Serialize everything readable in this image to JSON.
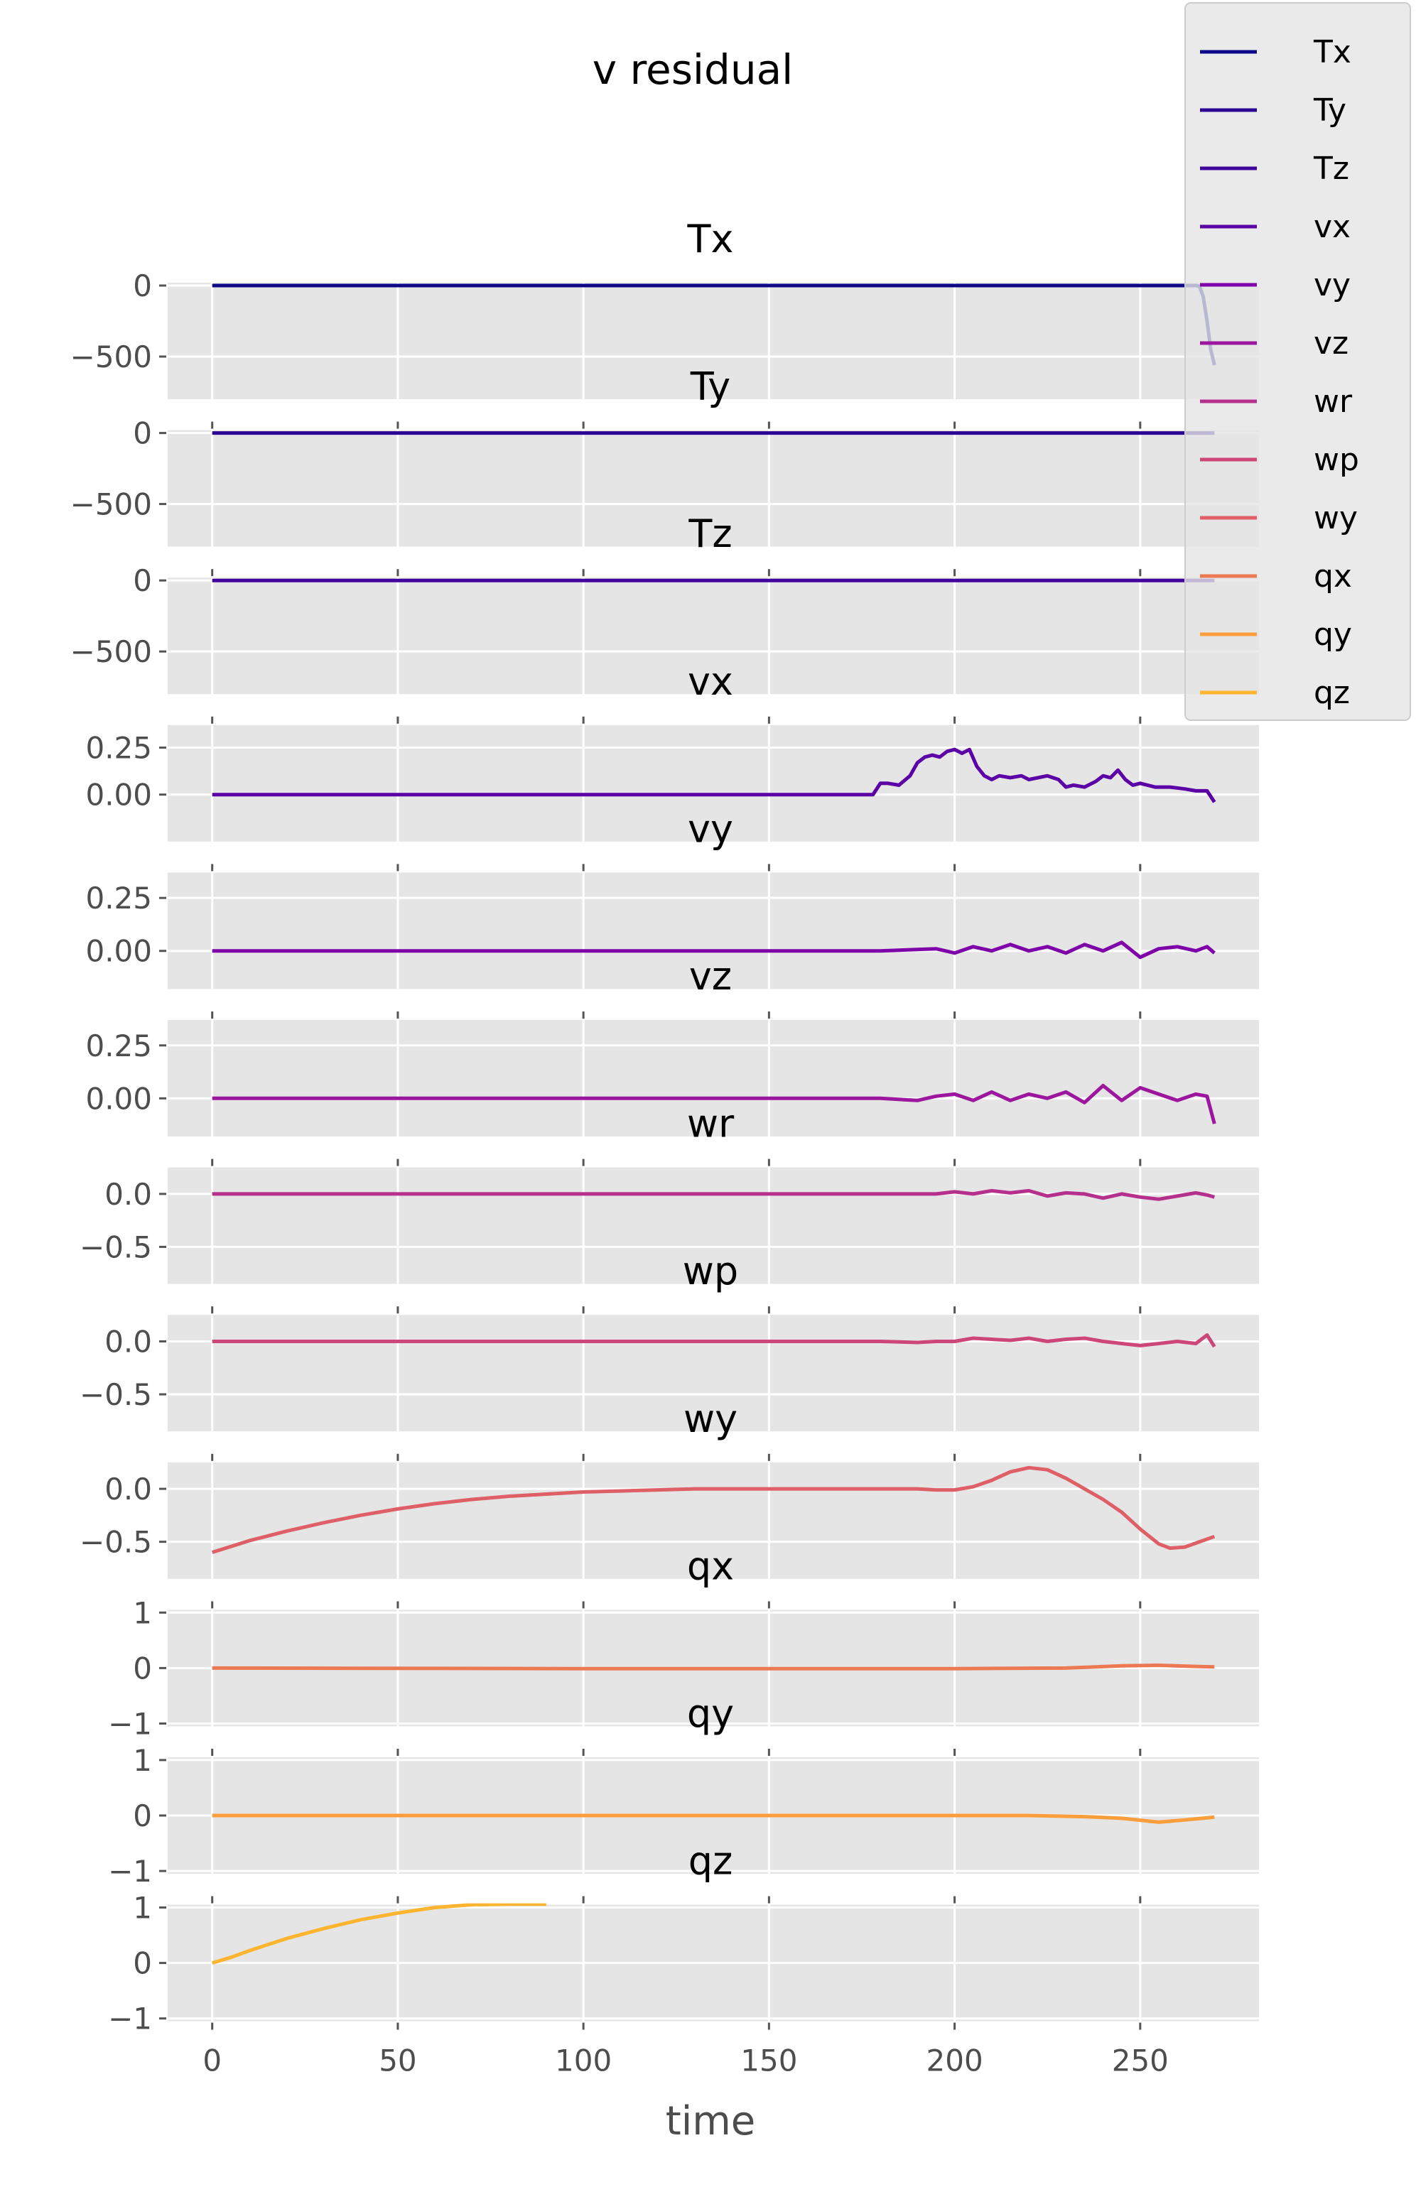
{
  "chart_data": {
    "type": "line",
    "title": "v residual",
    "xlabel": "time",
    "xlim": [
      -12,
      282
    ],
    "xticks": [
      0,
      50,
      100,
      150,
      200,
      250
    ],
    "grid": true,
    "sharex": true,
    "legend": {
      "placement": "top-right",
      "entries": [
        "Tx",
        "Ty",
        "Tz",
        "vx",
        "vy",
        "vz",
        "wr",
        "wp",
        "wy",
        "qx",
        "qy",
        "qz"
      ]
    },
    "panels": [
      {
        "title": "Tx",
        "color": "#0d0887",
        "ylim": [
          -800,
          20
        ],
        "yticks": [
          0,
          -500
        ],
        "x": [
          0,
          265,
          266,
          267,
          268,
          269,
          270
        ],
        "y": [
          0,
          0,
          -5,
          -80,
          -250,
          -450,
          -560
        ]
      },
      {
        "title": "Ty",
        "color": "#2a0593",
        "ylim": [
          -800,
          20
        ],
        "yticks": [
          0,
          -500
        ],
        "x": [
          0,
          270
        ],
        "y": [
          0,
          0
        ]
      },
      {
        "title": "Tz",
        "color": "#41049d",
        "ylim": [
          -800,
          20
        ],
        "yticks": [
          0,
          -500
        ],
        "x": [
          0,
          270
        ],
        "y": [
          0,
          0
        ]
      },
      {
        "title": "vx",
        "color": "#5c01a6",
        "ylim": [
          -0.25,
          0.37
        ],
        "yticks": [
          0.25,
          0.0
        ],
        "x": [
          0,
          150,
          170,
          178,
          180,
          182,
          185,
          188,
          190,
          192,
          194,
          196,
          198,
          200,
          202,
          204,
          206,
          208,
          210,
          212,
          215,
          218,
          220,
          225,
          228,
          230,
          232,
          235,
          238,
          240,
          242,
          244,
          246,
          248,
          250,
          254,
          258,
          262,
          265,
          268,
          270
        ],
        "y": [
          0,
          0,
          0,
          0,
          0.06,
          0.06,
          0.05,
          0.1,
          0.17,
          0.2,
          0.21,
          0.2,
          0.23,
          0.24,
          0.22,
          0.24,
          0.15,
          0.1,
          0.08,
          0.1,
          0.09,
          0.1,
          0.08,
          0.1,
          0.08,
          0.04,
          0.05,
          0.04,
          0.07,
          0.1,
          0.09,
          0.13,
          0.08,
          0.05,
          0.06,
          0.04,
          0.04,
          0.03,
          0.02,
          0.02,
          -0.04
        ]
      },
      {
        "title": "vy",
        "color": "#7e03a8",
        "ylim": [
          -0.18,
          0.37
        ],
        "yticks": [
          0.25,
          0.0
        ],
        "x": [
          0,
          180,
          195,
          200,
          205,
          210,
          215,
          220,
          225,
          230,
          235,
          240,
          245,
          250,
          255,
          260,
          265,
          268,
          270
        ],
        "y": [
          0,
          0,
          0.01,
          -0.01,
          0.02,
          0.0,
          0.03,
          0.0,
          0.02,
          -0.01,
          0.03,
          0.0,
          0.04,
          -0.03,
          0.01,
          0.02,
          0.0,
          0.02,
          -0.01
        ]
      },
      {
        "title": "vz",
        "color": "#9c179e",
        "ylim": [
          -0.18,
          0.37
        ],
        "yticks": [
          0.25,
          0.0
        ],
        "x": [
          0,
          180,
          190,
          195,
          200,
          205,
          210,
          215,
          220,
          225,
          230,
          235,
          240,
          245,
          250,
          255,
          260,
          265,
          268,
          270
        ],
        "y": [
          0,
          0,
          -0.01,
          0.01,
          0.02,
          -0.01,
          0.03,
          -0.01,
          0.02,
          0.0,
          0.03,
          -0.02,
          0.06,
          -0.01,
          0.05,
          0.02,
          -0.01,
          0.02,
          0.01,
          -0.12
        ]
      },
      {
        "title": "wr",
        "color": "#b52f8c",
        "ylim": [
          -0.85,
          0.25
        ],
        "yticks": [
          0.0,
          -0.5
        ],
        "x": [
          0,
          150,
          190,
          195,
          200,
          205,
          210,
          215,
          220,
          225,
          230,
          235,
          240,
          245,
          250,
          255,
          260,
          265,
          268,
          270
        ],
        "y": [
          0,
          0,
          0,
          0.0,
          0.02,
          0.0,
          0.03,
          0.01,
          0.03,
          -0.02,
          0.01,
          0.0,
          -0.04,
          0.0,
          -0.03,
          -0.05,
          -0.02,
          0.01,
          -0.01,
          -0.03
        ]
      },
      {
        "title": "wp",
        "color": "#cc4778",
        "ylim": [
          -0.85,
          0.25
        ],
        "yticks": [
          0.0,
          -0.5
        ],
        "x": [
          0,
          150,
          180,
          190,
          195,
          200,
          205,
          210,
          215,
          220,
          225,
          230,
          235,
          240,
          245,
          250,
          255,
          260,
          265,
          268,
          270
        ],
        "y": [
          0,
          0,
          0,
          -0.01,
          0.0,
          0.0,
          0.03,
          0.02,
          0.01,
          0.03,
          0.0,
          0.02,
          0.03,
          0.0,
          -0.02,
          -0.04,
          -0.02,
          0.0,
          -0.02,
          0.06,
          -0.05
        ]
      },
      {
        "title": "wy",
        "color": "#de5f65",
        "ylim": [
          -0.85,
          0.25
        ],
        "yticks": [
          0.0,
          -0.5
        ],
        "x": [
          0,
          10,
          20,
          30,
          40,
          50,
          60,
          70,
          80,
          90,
          100,
          110,
          120,
          130,
          140,
          150,
          160,
          170,
          180,
          190,
          195,
          200,
          205,
          210,
          215,
          220,
          225,
          230,
          235,
          240,
          245,
          250,
          255,
          258,
          262,
          266,
          270
        ],
        "y": [
          -0.6,
          -0.49,
          -0.4,
          -0.32,
          -0.25,
          -0.19,
          -0.14,
          -0.1,
          -0.07,
          -0.05,
          -0.03,
          -0.02,
          -0.01,
          0.0,
          0.0,
          0.0,
          0.0,
          0.0,
          0.0,
          0.0,
          -0.01,
          -0.01,
          0.02,
          0.08,
          0.16,
          0.2,
          0.18,
          0.1,
          0.0,
          -0.1,
          -0.22,
          -0.38,
          -0.52,
          -0.56,
          -0.55,
          -0.5,
          -0.45
        ]
      },
      {
        "title": "qx",
        "color": "#ed7953",
        "ylim": [
          -1.05,
          1.05
        ],
        "yticks": [
          1,
          0,
          -1
        ],
        "x": [
          0,
          100,
          200,
          230,
          245,
          255,
          265,
          270
        ],
        "y": [
          0,
          -0.01,
          -0.01,
          0.0,
          0.04,
          0.05,
          0.03,
          0.02
        ]
      },
      {
        "title": "qy",
        "color": "#fa9e3b",
        "ylim": [
          -1.05,
          1.05
        ],
        "yticks": [
          1,
          0,
          -1
        ],
        "x": [
          0,
          50,
          100,
          150,
          200,
          220,
          235,
          245,
          255,
          262,
          270
        ],
        "y": [
          0,
          0.0,
          0.0,
          0.0,
          0.0,
          0.0,
          -0.02,
          -0.05,
          -0.12,
          -0.08,
          -0.03
        ]
      },
      {
        "title": "qz",
        "color": "#fdb42f",
        "ylim": [
          -1.05,
          1.05
        ],
        "yticks": [
          1,
          0,
          -1
        ],
        "x": [
          0,
          5,
          10,
          20,
          30,
          40,
          50,
          60,
          70,
          80,
          90
        ],
        "y": [
          0,
          0.1,
          0.22,
          0.44,
          0.62,
          0.78,
          0.9,
          1.0,
          1.05,
          1.06,
          1.06
        ]
      }
    ]
  }
}
